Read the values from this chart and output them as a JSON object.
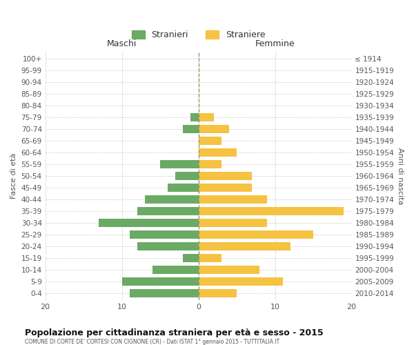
{
  "age_groups": [
    "0-4",
    "5-9",
    "10-14",
    "15-19",
    "20-24",
    "25-29",
    "30-34",
    "35-39",
    "40-44",
    "45-49",
    "50-54",
    "55-59",
    "60-64",
    "65-69",
    "70-74",
    "75-79",
    "80-84",
    "85-89",
    "90-94",
    "95-99",
    "100+"
  ],
  "birth_years": [
    "2010-2014",
    "2005-2009",
    "2000-2004",
    "1995-1999",
    "1990-1994",
    "1985-1989",
    "1980-1984",
    "1975-1979",
    "1970-1974",
    "1965-1969",
    "1960-1964",
    "1955-1959",
    "1950-1954",
    "1945-1949",
    "1940-1944",
    "1935-1939",
    "1930-1934",
    "1925-1929",
    "1920-1924",
    "1915-1919",
    "≤ 1914"
  ],
  "maschi": [
    9,
    10,
    6,
    2,
    8,
    9,
    13,
    8,
    7,
    4,
    3,
    5,
    0,
    0,
    2,
    1,
    0,
    0,
    0,
    0,
    0
  ],
  "femmine": [
    5,
    11,
    8,
    3,
    12,
    15,
    9,
    19,
    9,
    7,
    7,
    3,
    5,
    3,
    4,
    2,
    0,
    0,
    0,
    0,
    0
  ],
  "male_color": "#6aaa64",
  "female_color": "#f5c242",
  "background_color": "#ffffff",
  "grid_color": "#cccccc",
  "title": "Popolazione per cittadinanza straniera per età e sesso - 2015",
  "subtitle": "COMUNE DI CORTE DE' CORTESI CON CIGNONE (CR) - Dati ISTAT 1° gennaio 2015 - TUTTITALIA.IT",
  "ylabel_left": "Fasce di età",
  "ylabel_right": "Anni di nascita",
  "xlabel_left": "Maschi",
  "xlabel_right": "Femmine",
  "legend_male": "Stranieri",
  "legend_female": "Straniere",
  "xlim": 20
}
